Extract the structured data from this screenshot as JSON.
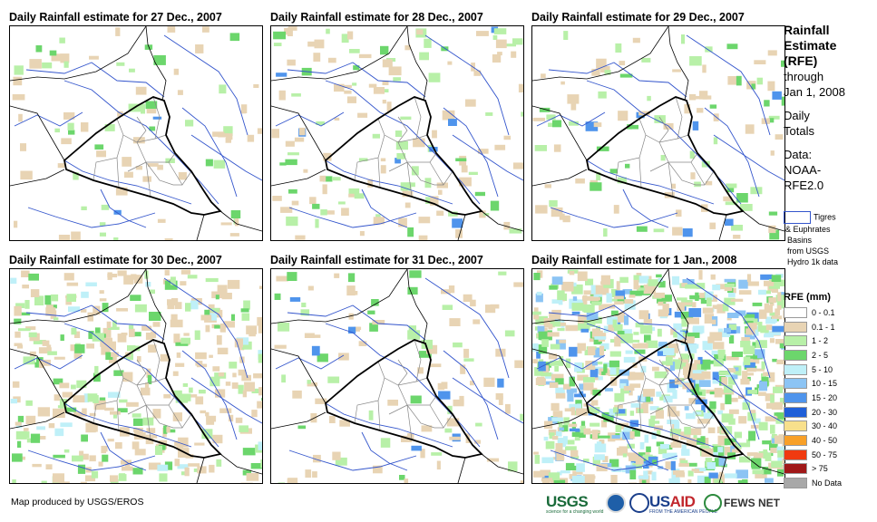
{
  "panels": [
    {
      "title": "Daily Rainfall estimate for 27 Dec., 2007",
      "intensity": 0.05
    },
    {
      "title": "Daily Rainfall estimate for 28 Dec., 2007",
      "intensity": 0.12
    },
    {
      "title": "Daily Rainfall estimate for 29 Dec., 2007",
      "intensity": 0.08
    },
    {
      "title": "Daily Rainfall estimate for 30 Dec., 2007",
      "intensity": 0.35
    },
    {
      "title": "Daily Rainfall estimate for 31 Dec., 2007",
      "intensity": 0.08
    },
    {
      "title": "Daily Rainfall estimate for 1 Jan., 2008",
      "intensity": 0.9
    }
  ],
  "side": {
    "title_lines": [
      "Rainfall",
      "Estimate",
      "(RFE)"
    ],
    "through": "through",
    "date": "Jan 1, 2008",
    "totals_lines": [
      "Daily",
      "Totals"
    ],
    "data_lines": [
      "Data:",
      "NOAA-",
      "RFE2.0"
    ]
  },
  "basin_key": {
    "line1": "Tigres",
    "lines": [
      "& Euphrates",
      "Basins",
      "from USGS",
      "Hydro 1k data"
    ]
  },
  "legend": {
    "title": "RFE (mm)",
    "items": [
      {
        "label": "0 - 0.1",
        "color": "#ffffff"
      },
      {
        "label": "0.1 - 1",
        "color": "#e8d4b4"
      },
      {
        "label": "1 - 2",
        "color": "#b8f0a8"
      },
      {
        "label": "2 - 5",
        "color": "#6cd66c"
      },
      {
        "label": "5 - 10",
        "color": "#bff0f8"
      },
      {
        "label": "10 - 15",
        "color": "#8cc4f4"
      },
      {
        "label": "15 - 20",
        "color": "#4f94ec"
      },
      {
        "label": "20 - 30",
        "color": "#1f5fd8"
      },
      {
        "label": "30 - 40",
        "color": "#f8e08c"
      },
      {
        "label": "40 - 50",
        "color": "#f8a028"
      },
      {
        "label": "50 - 75",
        "color": "#f03a10"
      },
      {
        "label": "> 75",
        "color": "#a01818"
      },
      {
        "label": "No Data",
        "color": "#a8a8a8"
      }
    ]
  },
  "credit": "Map produced by USGS/EROS",
  "logos": {
    "usgs": "USGS",
    "usgs_tagline": "science for a changing world",
    "usaid_prefix": "US",
    "usaid_suffix": "AID",
    "usaid_tagline": "FROM THE AMERICAN PEOPLE",
    "fews": "FEWS NET"
  }
}
